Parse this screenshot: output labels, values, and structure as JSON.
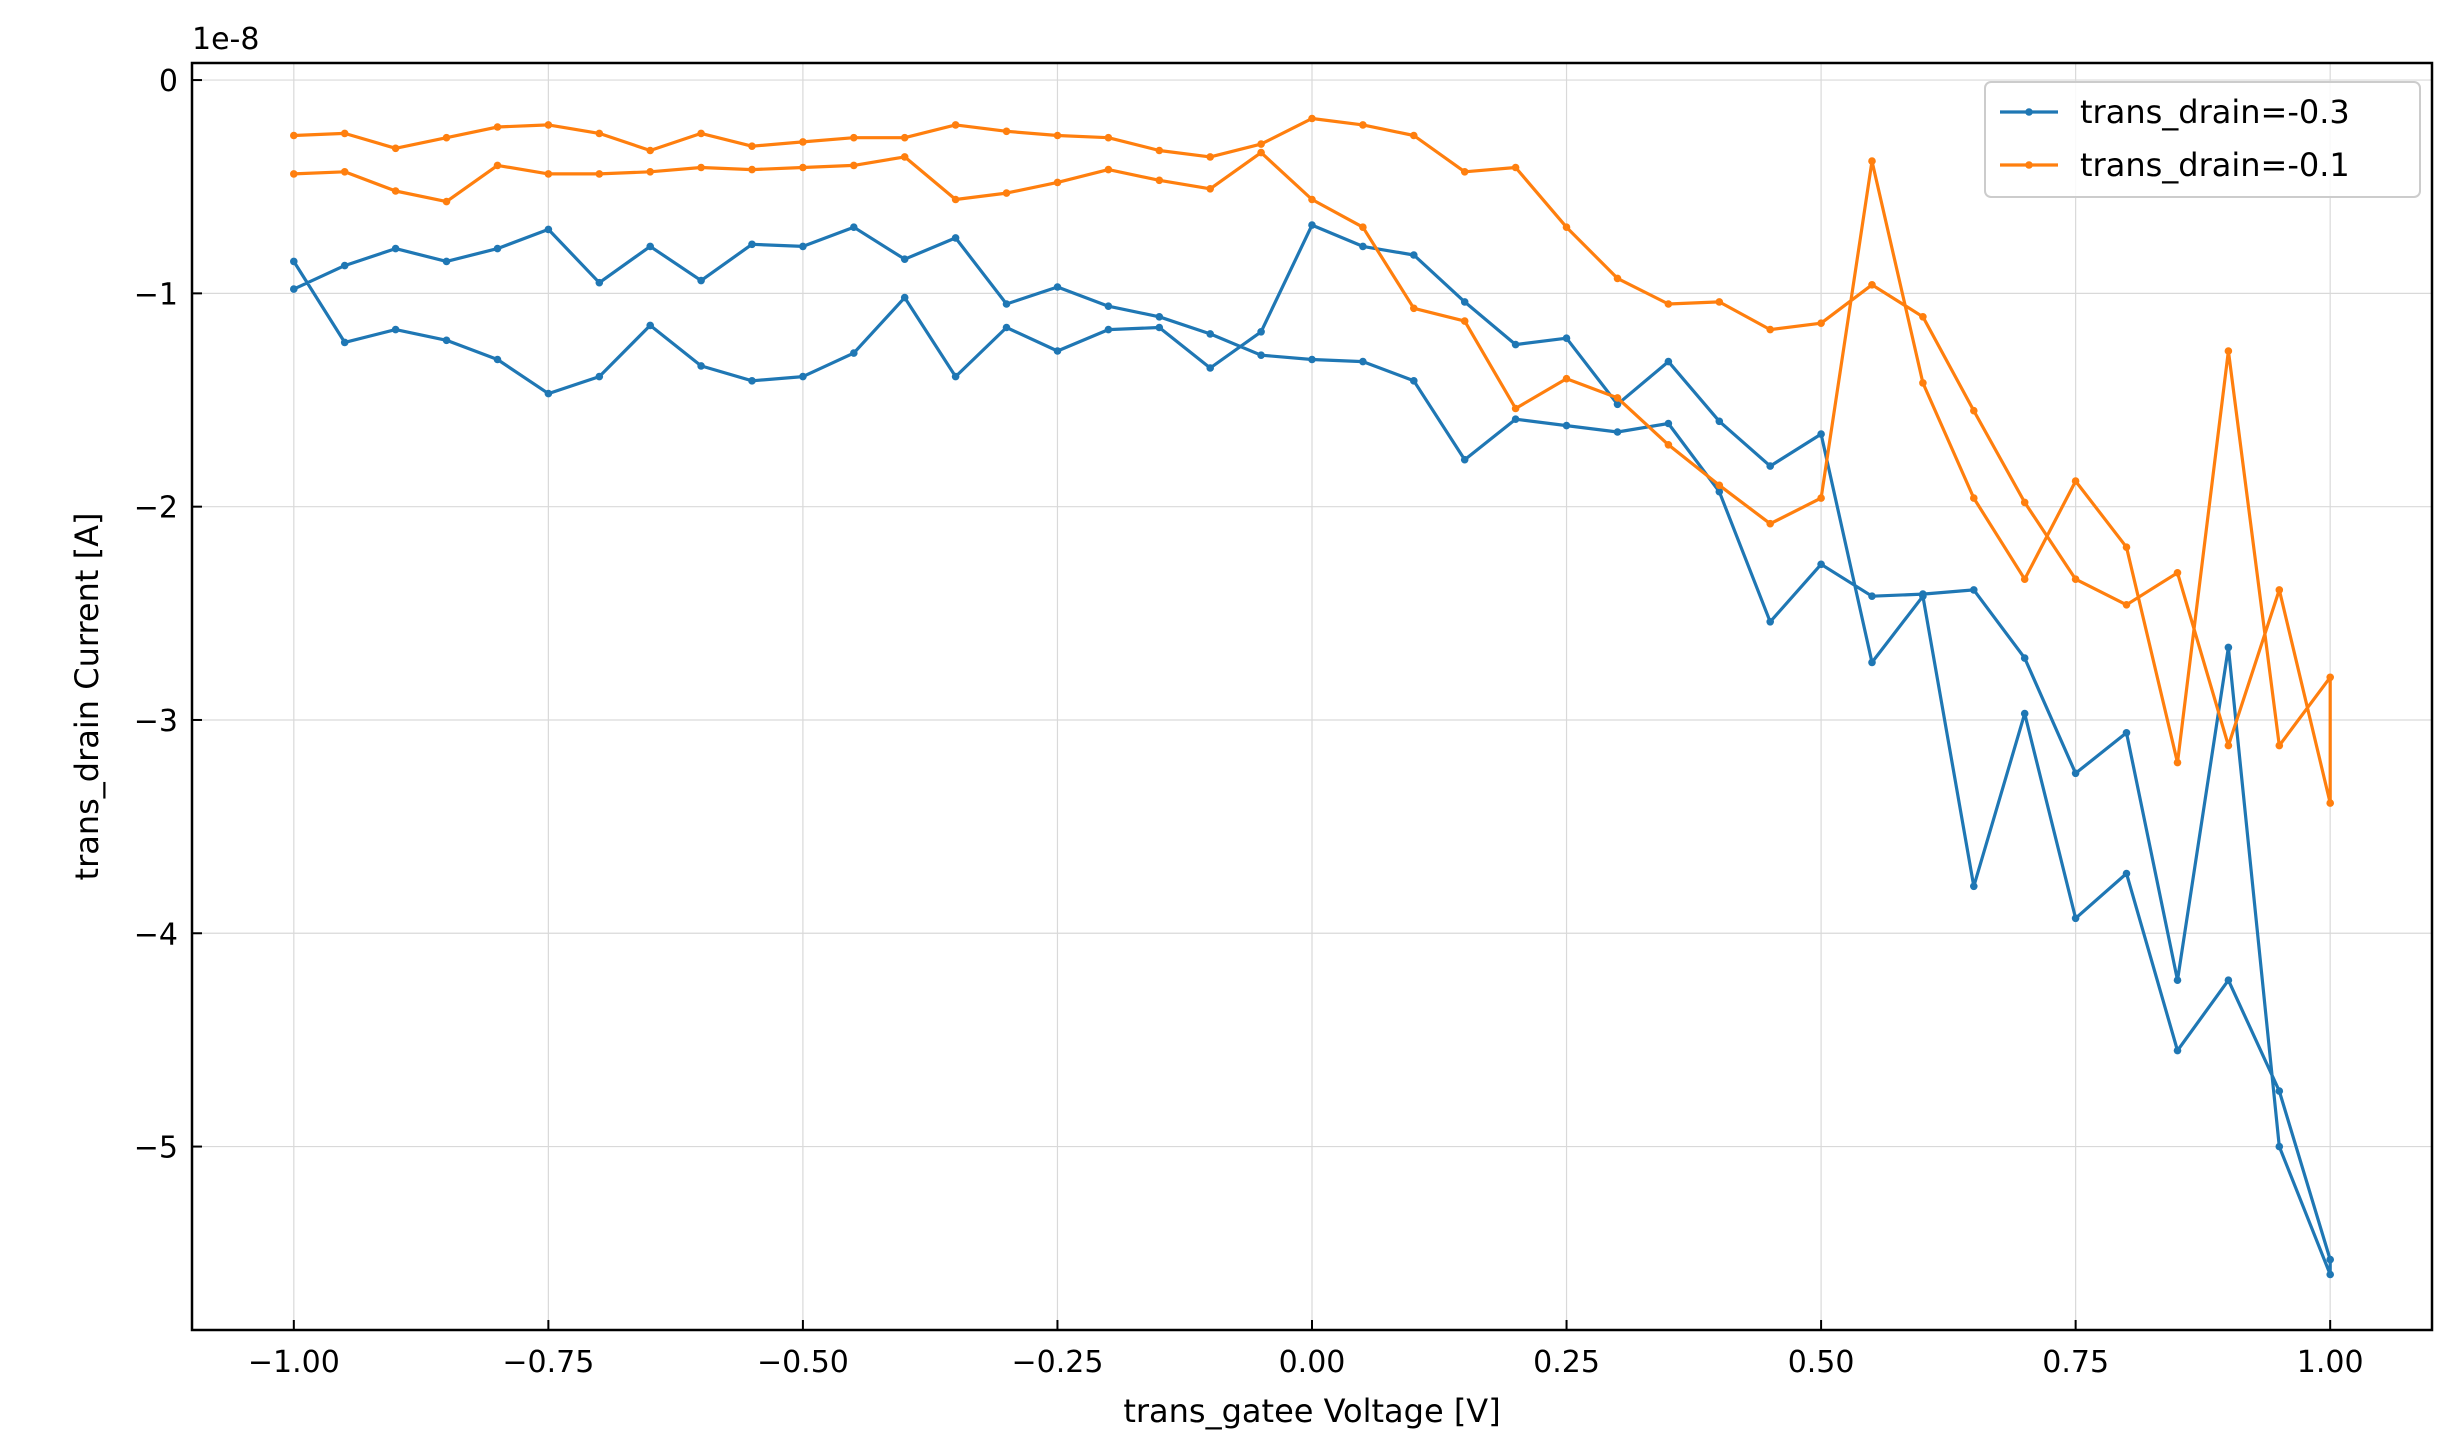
{
  "chart_data": {
    "type": "line",
    "title": "",
    "xlabel": "trans_gatee Voltage [V]",
    "ylabel": "trans_drain Current [A]",
    "y_offset_label": "1e-8",
    "xlim": [
      -1.1,
      1.1
    ],
    "ylim": [
      -5.86,
      0.08
    ],
    "x_ticks": [
      -1.0,
      -0.75,
      -0.5,
      -0.25,
      0.0,
      0.25,
      0.5,
      0.75,
      1.0
    ],
    "x_tick_labels": [
      "−1.00",
      "−0.75",
      "−0.50",
      "−0.25",
      "0.00",
      "0.25",
      "0.50",
      "0.75",
      "1.00"
    ],
    "y_ticks": [
      0,
      -1,
      -2,
      -3,
      -4,
      -5
    ],
    "y_tick_labels": [
      "0",
      "−1",
      "−2",
      "−3",
      "−4",
      "−5"
    ],
    "grid": true,
    "legend_position": "top-right",
    "y_unit_multiplier": 1e-08,
    "x": [
      -1.0,
      -0.95,
      -0.9,
      -0.85,
      -0.8,
      -0.75,
      -0.7,
      -0.65,
      -0.6,
      -0.55,
      -0.5,
      -0.45,
      -0.4,
      -0.35,
      -0.3,
      -0.25,
      -0.2,
      -0.15,
      -0.1,
      -0.05,
      0.0,
      0.05,
      0.1,
      0.15,
      0.2,
      0.25,
      0.3,
      0.35,
      0.4,
      0.45,
      0.5,
      0.55,
      0.6,
      0.65,
      0.7,
      0.75,
      0.8,
      0.85,
      0.9,
      0.95,
      1.0
    ],
    "series": [
      {
        "name": "trans_drain=-0.3",
        "color": "#1f77b4",
        "sweeps": [
          [
            -0.98,
            -0.87,
            -0.79,
            -0.85,
            -0.79,
            -0.7,
            -0.95,
            -0.78,
            -0.94,
            -0.77,
            -0.78,
            -0.69,
            -0.84,
            -0.74,
            -1.05,
            -0.97,
            -1.06,
            -1.11,
            -1.19,
            -1.29,
            -1.31,
            -1.32,
            -1.41,
            -1.78,
            -1.59,
            -1.62,
            -1.65,
            -1.61,
            -1.93,
            -2.54,
            -2.27,
            -2.42,
            -2.41,
            -2.39,
            -2.71,
            -3.25,
            -3.06,
            -4.22,
            -2.66,
            -5.0,
            -5.6
          ],
          [
            -0.85,
            -1.23,
            -1.17,
            -1.22,
            -1.31,
            -1.47,
            -1.39,
            -1.15,
            -1.34,
            -1.41,
            -1.39,
            -1.28,
            -1.02,
            -1.39,
            -1.16,
            -1.27,
            -1.17,
            -1.16,
            -1.35,
            -1.18,
            -0.68,
            -0.78,
            -0.82,
            -1.04,
            -1.24,
            -1.21,
            -1.52,
            -1.32,
            -1.6,
            -1.81,
            -1.66,
            -2.73,
            -2.42,
            -3.78,
            -2.97,
            -3.93,
            -3.72,
            -4.55,
            -4.22,
            -4.74,
            -5.53
          ]
        ]
      },
      {
        "name": "trans_drain=-0.1",
        "color": "#ff7f0e",
        "sweeps": [
          [
            -0.26,
            -0.25,
            -0.32,
            -0.27,
            -0.22,
            -0.21,
            -0.25,
            -0.33,
            -0.25,
            -0.31,
            -0.29,
            -0.27,
            -0.27,
            -0.21,
            -0.24,
            -0.26,
            -0.27,
            -0.33,
            -0.36,
            -0.3,
            -0.18,
            -0.21,
            -0.26,
            -0.43,
            -0.41,
            -0.69,
            -0.93,
            -1.05,
            -1.04,
            -1.17,
            -1.14,
            -0.96,
            -1.11,
            -1.55,
            -1.98,
            -2.34,
            -2.46,
            -2.31,
            -3.12,
            -2.39,
            -3.39
          ],
          [
            -0.44,
            -0.43,
            -0.52,
            -0.57,
            -0.4,
            -0.44,
            -0.44,
            -0.43,
            -0.41,
            -0.42,
            -0.41,
            -0.4,
            -0.36,
            -0.56,
            -0.53,
            -0.48,
            -0.42,
            -0.47,
            -0.51,
            -0.34,
            -0.56,
            -0.69,
            -1.07,
            -1.13,
            -1.54,
            -1.4,
            -1.49,
            -1.71,
            -1.9,
            -2.08,
            -1.96,
            -0.38,
            -1.42,
            -1.96,
            -2.34,
            -1.88,
            -2.19,
            -3.2,
            -1.27,
            -3.12,
            -2.8
          ]
        ]
      }
    ]
  }
}
